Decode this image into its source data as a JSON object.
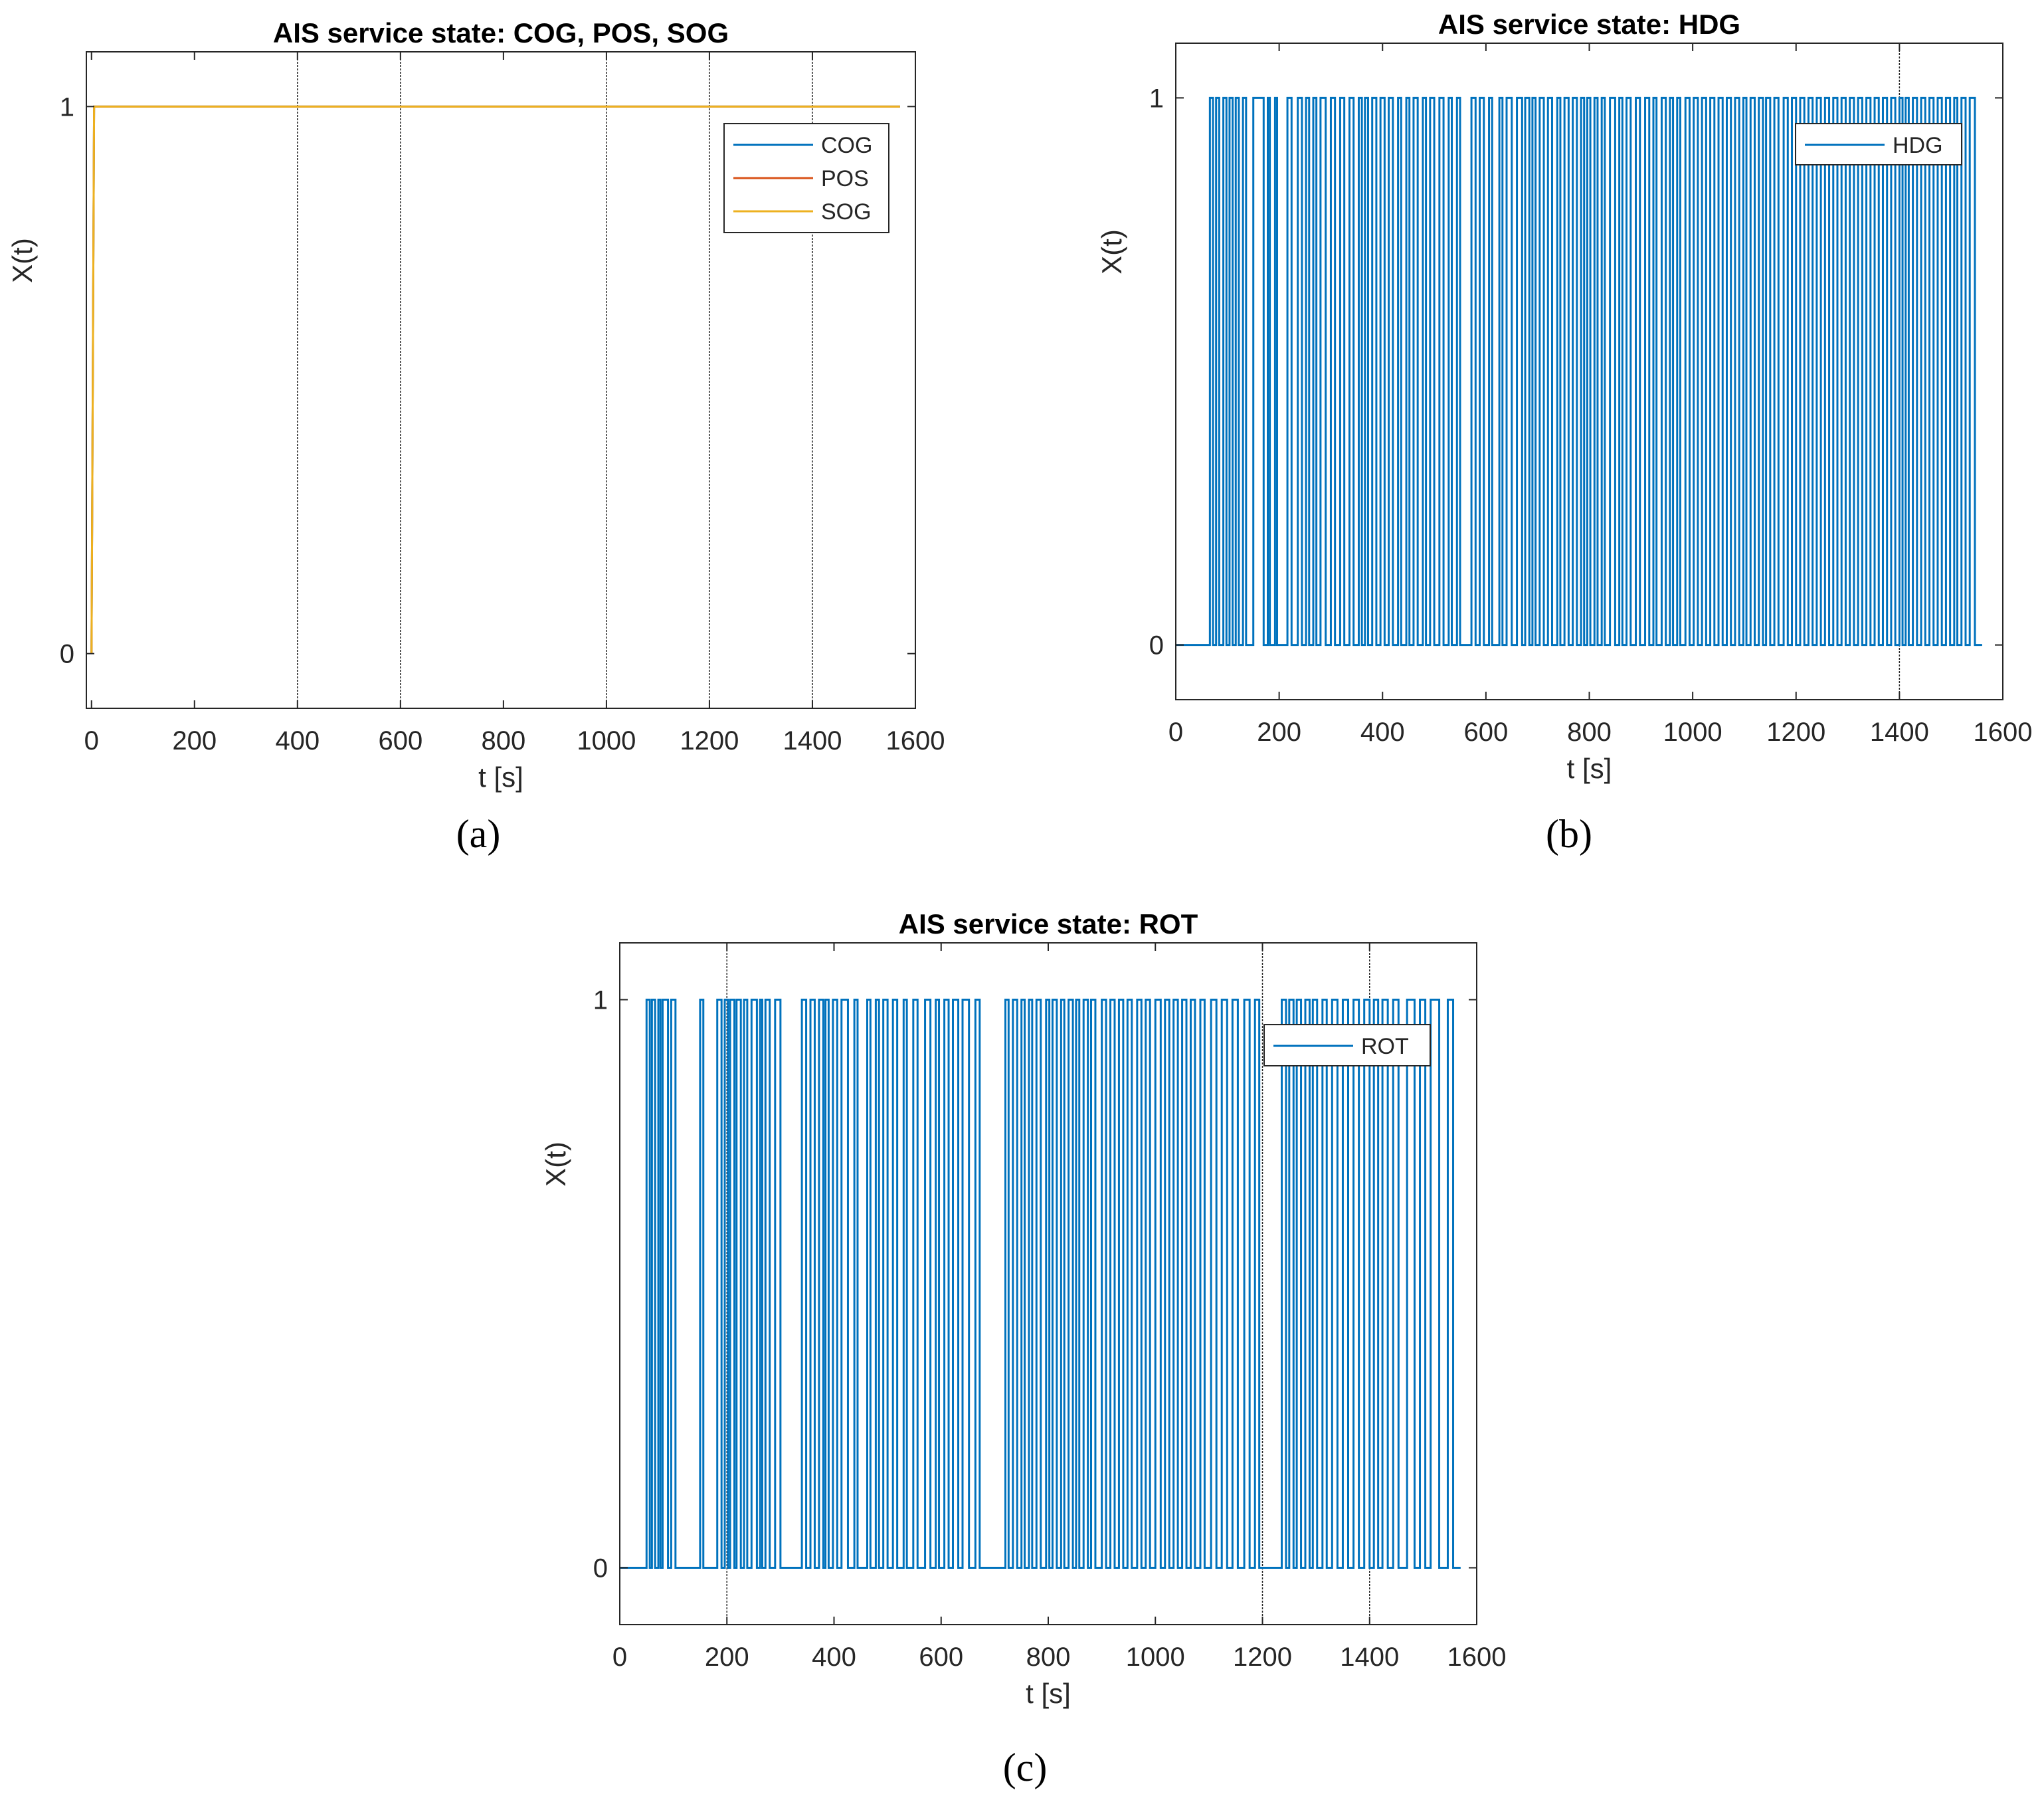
{
  "chart_data": [
    {
      "panel": "a",
      "type": "line",
      "title": "AIS service state: COG, POS, SOG",
      "xlabel": "t [s]",
      "ylabel": "X(t)",
      "xlim": [
        -10,
        1600
      ],
      "ylim": [
        -0.1,
        1.1
      ],
      "xticks": [
        0,
        200,
        400,
        600,
        800,
        1000,
        1200,
        1400,
        1600
      ],
      "yticks": [
        0,
        1
      ],
      "xtick_labels": [
        "0",
        "200",
        "400",
        "600",
        "800",
        "1000",
        "1200",
        "1400",
        "1600"
      ],
      "ytick_labels": [
        "0",
        "1"
      ],
      "vertical_gridlines": [
        400,
        600,
        1000,
        1200,
        1400
      ],
      "legend": "top-right",
      "series": [
        {
          "name": "COG",
          "color": "#0072BD",
          "x": [
            0,
            5,
            1570
          ],
          "y": [
            0,
            1,
            1
          ]
        },
        {
          "name": "POS",
          "color": "#D95319",
          "x": [
            0,
            5,
            1570
          ],
          "y": [
            0,
            1,
            1
          ]
        },
        {
          "name": "SOG",
          "color": "#EDB120",
          "x": [
            0,
            5,
            1570
          ],
          "y": [
            0,
            1,
            1
          ]
        }
      ]
    },
    {
      "panel": "b",
      "type": "line",
      "title": "AIS service state: HDG",
      "xlabel": "t [s]",
      "ylabel": "X(t)",
      "xlim": [
        0,
        1600
      ],
      "ylim": [
        -0.1,
        1.1
      ],
      "xticks": [
        0,
        200,
        400,
        600,
        800,
        1000,
        1200,
        1400,
        1600
      ],
      "yticks": [
        0,
        1
      ],
      "xtick_labels": [
        "0",
        "200",
        "400",
        "600",
        "800",
        "1000",
        "1200",
        "1400",
        "1600"
      ],
      "ytick_labels": [
        "0",
        "1"
      ],
      "vertical_gridlines": [
        1400
      ],
      "legend": "top-right",
      "series": [
        {
          "name": "HDG",
          "color": "#0072BD",
          "switches": [
            66,
            72,
            78,
            84,
            92,
            98,
            104,
            110,
            116,
            122,
            130,
            136,
            150,
            170,
            178,
            182,
            192,
            196,
            216,
            224,
            236,
            244,
            252,
            258,
            266,
            272,
            280,
            290,
            300,
            308,
            318,
            326,
            336,
            344,
            354,
            360,
            366,
            372,
            380,
            388,
            396,
            404,
            412,
            420,
            430,
            436,
            446,
            452,
            460,
            468,
            478,
            484,
            492,
            500,
            510,
            518,
            528,
            534,
            544,
            550,
            572,
            580,
            588,
            596,
            606,
            612,
            626,
            632,
            640,
            650,
            660,
            670,
            676,
            684,
            690,
            696,
            704,
            712,
            720,
            728,
            738,
            744,
            752,
            760,
            768,
            776,
            784,
            790,
            796,
            802,
            810,
            816,
            824,
            830,
            840,
            850,
            858,
            864,
            872,
            880,
            890,
            898,
            908,
            916,
            924,
            930,
            940,
            948,
            956,
            962,
            970,
            976,
            986,
            994,
            1002,
            1010,
            1018,
            1026,
            1034,
            1042,
            1050,
            1058,
            1066,
            1074,
            1082,
            1090,
            1098,
            1104,
            1112,
            1120,
            1128,
            1136,
            1142,
            1150,
            1158,
            1166,
            1176,
            1184,
            1192,
            1200,
            1208,
            1216,
            1224,
            1232,
            1240,
            1248,
            1256,
            1264,
            1272,
            1280,
            1288,
            1296,
            1304,
            1312,
            1320,
            1328,
            1336,
            1344,
            1352,
            1360,
            1368,
            1376,
            1384,
            1392,
            1400,
            1406,
            1412,
            1418,
            1426,
            1434,
            1442,
            1450,
            1458,
            1466,
            1474,
            1482,
            1490,
            1498,
            1506,
            1512,
            1520,
            1528,
            1536,
            1546
          ],
          "x_end": 1560
        }
      ]
    },
    {
      "panel": "c",
      "type": "line",
      "title": "AIS service state: ROT",
      "xlabel": "t [s]",
      "ylabel": "X(t)",
      "xlim": [
        0,
        1600
      ],
      "ylim": [
        -0.1,
        1.1
      ],
      "xticks": [
        0,
        200,
        400,
        600,
        800,
        1000,
        1200,
        1400,
        1600
      ],
      "yticks": [
        0,
        1
      ],
      "xtick_labels": [
        "0",
        "200",
        "400",
        "600",
        "800",
        "1000",
        "1200",
        "1400",
        "1600"
      ],
      "ytick_labels": [
        "0",
        "1"
      ],
      "vertical_gridlines": [
        200,
        1200,
        1400
      ],
      "legend": "top-right",
      "series": [
        {
          "name": "ROT",
          "color": "#0072BD",
          "switches": [
            50,
            56,
            60,
            66,
            72,
            76,
            80,
            90,
            96,
            104,
            150,
            156,
            182,
            190,
            196,
            202,
            206,
            214,
            218,
            226,
            232,
            238,
            246,
            256,
            262,
            266,
            272,
            280,
            290,
            300,
            340,
            348,
            356,
            364,
            372,
            380,
            384,
            390,
            398,
            406,
            414,
            426,
            438,
            444,
            462,
            468,
            478,
            484,
            492,
            500,
            510,
            518,
            530,
            536,
            548,
            556,
            570,
            580,
            590,
            596,
            606,
            614,
            622,
            632,
            640,
            652,
            664,
            672,
            720,
            726,
            734,
            742,
            750,
            756,
            764,
            770,
            778,
            786,
            796,
            802,
            808,
            816,
            824,
            830,
            838,
            846,
            852,
            858,
            866,
            874,
            880,
            888,
            900,
            908,
            916,
            924,
            932,
            940,
            948,
            956,
            966,
            974,
            982,
            990,
            1000,
            1010,
            1018,
            1026,
            1034,
            1042,
            1050,
            1058,
            1066,
            1074,
            1084,
            1092,
            1104,
            1114,
            1124,
            1134,
            1144,
            1154,
            1166,
            1176,
            1186,
            1194,
            1236,
            1244,
            1250,
            1258,
            1264,
            1272,
            1280,
            1288,
            1294,
            1302,
            1312,
            1320,
            1330,
            1340,
            1350,
            1360,
            1370,
            1380,
            1390,
            1400,
            1408,
            1416,
            1424,
            1434,
            1444,
            1454,
            1470,
            1484,
            1494,
            1504,
            1514,
            1530,
            1546,
            1556
          ],
          "x_end": 1570
        }
      ]
    }
  ],
  "panel_labels": {
    "a": "(a)",
    "b": "(b)",
    "c": "(c)"
  },
  "colors": {
    "gridline": "#262626",
    "axis": "#262626",
    "background": "#ffffff"
  }
}
